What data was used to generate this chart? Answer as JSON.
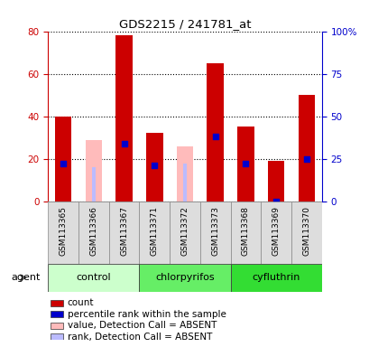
{
  "title": "GDS2215 / 241781_at",
  "samples": [
    "GSM113365",
    "GSM113366",
    "GSM113367",
    "GSM113371",
    "GSM113372",
    "GSM113373",
    "GSM113368",
    "GSM113369",
    "GSM113370"
  ],
  "groups": [
    {
      "label": "control",
      "color": "#ccffcc",
      "samples": [
        0,
        1,
        2
      ]
    },
    {
      "label": "chlorpyrifos",
      "color": "#66ee66",
      "samples": [
        3,
        4,
        5
      ]
    },
    {
      "label": "cyfluthrin",
      "color": "#33dd33",
      "samples": [
        6,
        7,
        8
      ]
    }
  ],
  "count_values": [
    40,
    0,
    78,
    32,
    0,
    65,
    35,
    19,
    50
  ],
  "rank_values": [
    22,
    0,
    34,
    21,
    0,
    38,
    22,
    0,
    25
  ],
  "absent_value": [
    0,
    29,
    0,
    0,
    26,
    0,
    0,
    0,
    0
  ],
  "absent_rank": [
    0,
    20,
    0,
    0,
    22,
    0,
    0,
    0,
    0
  ],
  "is_absent": [
    false,
    true,
    false,
    false,
    true,
    false,
    false,
    false,
    false
  ],
  "ylim_left": [
    0,
    80
  ],
  "ylim_right": [
    0,
    100
  ],
  "yticks_left": [
    0,
    20,
    40,
    60,
    80
  ],
  "yticks_right": [
    0,
    25,
    50,
    75,
    100
  ],
  "left_color": "#cc0000",
  "right_color": "#0000cc",
  "bar_width": 0.55,
  "absent_bar_color": "#ffbbbb",
  "absent_rank_color": "#bbbbff",
  "sample_box_color": "#dddddd",
  "agent_label": "agent"
}
